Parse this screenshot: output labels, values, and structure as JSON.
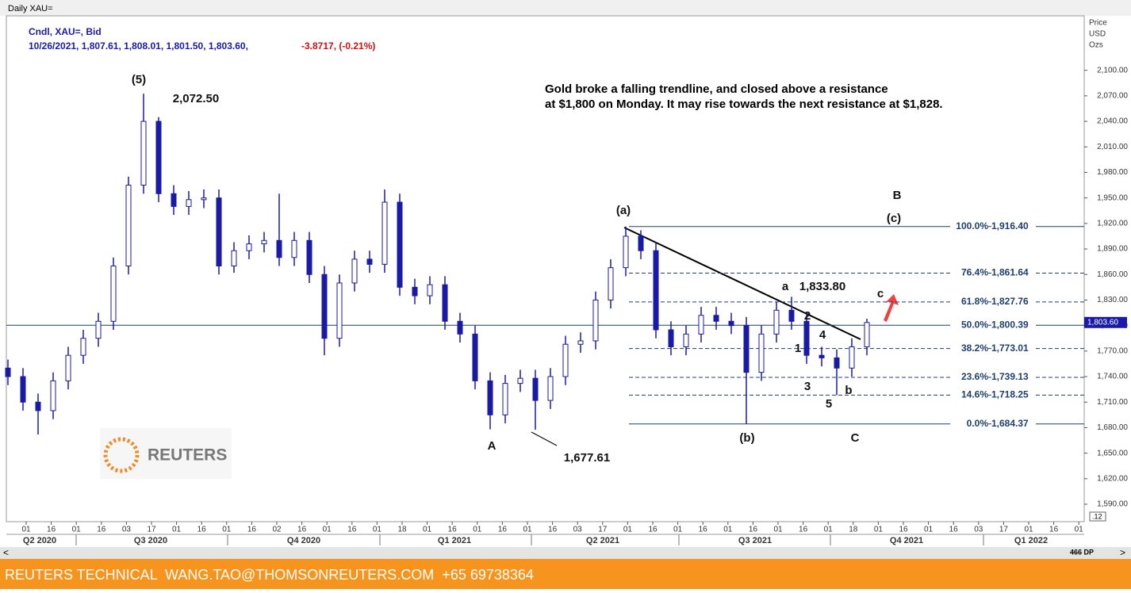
{
  "header": {
    "window_title": "Daily XAU=",
    "instrument": "Cndl, XAU=, Bid",
    "ohlc_line": "10/26/2021, 1,807.61, 1,808.01, 1,801.50, 1,803.60,",
    "change": "-3.8717, (-0.21%)"
  },
  "axis_header": [
    "Price",
    "USD",
    "Ozs"
  ],
  "chart_data": {
    "type": "candlestick",
    "color": "#1a1aa8",
    "categories": [
      null,
      null,
      null,
      null,
      null,
      null,
      null,
      null,
      null,
      null,
      null,
      null,
      null,
      null,
      null,
      null,
      null,
      null,
      null,
      null,
      null,
      null,
      null,
      null,
      null,
      null,
      null,
      null,
      null,
      null,
      null,
      null,
      null,
      null,
      null,
      null,
      null,
      null,
      null,
      null,
      null,
      null,
      null,
      null,
      null,
      null,
      null,
      null,
      null,
      null,
      null,
      null,
      null,
      null,
      null,
      null,
      null,
      null
    ],
    "open": [
      1750,
      1740,
      1710,
      1700,
      1735,
      1765,
      1785,
      1805,
      1870,
      1965,
      2040,
      1955,
      1940,
      1948,
      1950,
      1870,
      1888,
      1896,
      1900,
      1880,
      1900,
      1860,
      1785,
      1850,
      1878,
      1872,
      1945,
      1845,
      1835,
      1848,
      1805,
      1790,
      1735,
      1695,
      1732,
      1738,
      1712,
      1740,
      1778,
      1782,
      1830,
      1868,
      1905,
      1888,
      1795,
      1775,
      1790,
      1812,
      1805,
      1800,
      1745,
      1790,
      1818,
      1805,
      1765,
      1762,
      1750,
      1775
    ],
    "high": [
      1760,
      1750,
      1720,
      1745,
      1775,
      1795,
      1815,
      1880,
      1975,
      2072.5,
      2045,
      1965,
      1958,
      1960,
      1960,
      1898,
      1906,
      1910,
      1955,
      1910,
      1910,
      1870,
      1860,
      1888,
      1888,
      1960,
      1955,
      1855,
      1858,
      1858,
      1815,
      1800,
      1745,
      1742,
      1748,
      1748,
      1750,
      1788,
      1792,
      1840,
      1878,
      1916.4,
      1912,
      1898,
      1805,
      1800,
      1822,
      1822,
      1815,
      1810,
      1800,
      1828,
      1833.8,
      1815,
      1775,
      1772,
      1785,
      1808.01
    ],
    "low": [
      1730,
      1700,
      1672,
      1690,
      1725,
      1755,
      1775,
      1795,
      1860,
      1955,
      1945,
      1930,
      1930,
      1938,
      1860,
      1862,
      1878,
      1886,
      1870,
      1870,
      1850,
      1765,
      1775,
      1840,
      1862,
      1862,
      1835,
      1825,
      1825,
      1795,
      1780,
      1725,
      1678,
      1685,
      1722,
      1677.61,
      1702,
      1730,
      1768,
      1772,
      1820,
      1858,
      1878,
      1785,
      1765,
      1765,
      1780,
      1795,
      1790,
      1684.37,
      1735,
      1780,
      1795,
      1755,
      1752,
      1718.25,
      1740,
      1765
    ],
    "close": [
      1740,
      1710,
      1700,
      1735,
      1765,
      1785,
      1805,
      1870,
      1965,
      2040,
      1955,
      1940,
      1948,
      1950,
      1870,
      1888,
      1896,
      1900,
      1880,
      1900,
      1860,
      1785,
      1850,
      1878,
      1872,
      1945,
      1845,
      1835,
      1848,
      1805,
      1790,
      1735,
      1695,
      1732,
      1738,
      1712,
      1740,
      1778,
      1782,
      1830,
      1868,
      1905,
      1888,
      1795,
      1775,
      1790,
      1812,
      1805,
      1800,
      1745,
      1790,
      1818,
      1805,
      1765,
      1762,
      1750,
      1775,
      1803.6
    ],
    "ylim": [
      1569.5,
      2164
    ],
    "yticks": [
      {
        "value": 1590,
        "label": "1,590.00"
      },
      {
        "value": 1620,
        "label": "1,620.00"
      },
      {
        "value": 1650,
        "label": "1,650.00"
      },
      {
        "value": 1680,
        "label": "1,680.00"
      },
      {
        "value": 1710,
        "label": "1,710.00"
      },
      {
        "value": 1740,
        "label": "1,740.00"
      },
      {
        "value": 1770,
        "label": "1,770.00"
      },
      {
        "value": 1800,
        "label": "1,800.00"
      },
      {
        "value": 1830,
        "label": "1,830.00"
      },
      {
        "value": 1860,
        "label": "1,860.00"
      },
      {
        "value": 1890,
        "label": "1,890.00"
      },
      {
        "value": 1920,
        "label": "1,920.00"
      },
      {
        "value": 1950,
        "label": "1,950.00"
      },
      {
        "value": 1980,
        "label": "1,980.00"
      },
      {
        "value": 2010,
        "label": "2,010.00"
      },
      {
        "value": 2040,
        "label": "2,040.00"
      },
      {
        "value": 2070,
        "label": "2,070.00"
      },
      {
        "value": 2100,
        "label": "2,100.00"
      }
    ],
    "x_tick_labels": [
      "01",
      "16",
      "01",
      "16",
      "03",
      "17",
      "01",
      "16",
      "01",
      "16",
      "02",
      "16",
      "01",
      "16",
      "01",
      "18",
      "01",
      "16",
      "01",
      "16",
      "01",
      "16",
      "03",
      "17",
      "01",
      "16",
      "01",
      "16",
      "01",
      "16",
      "01",
      "16",
      "01",
      "18",
      "01",
      "16",
      "01",
      "16",
      "03",
      "17",
      "01",
      "16",
      "01"
    ],
    "quarter_labels": [
      "Q2 2020",
      "Q3 2020",
      "Q4 2020",
      "Q1 2021",
      "Q2 2021",
      "Q3 2021",
      "Q4 2021",
      "Q1 2022"
    ],
    "fib_levels": [
      {
        "label": "100.0%",
        "value": 1916.4,
        "value_label": "1,916.40"
      },
      {
        "label": "76.4%",
        "value": 1861.64,
        "value_label": "1,861.64"
      },
      {
        "label": "61.8%",
        "value": 1827.76,
        "value_label": "1,827.76"
      },
      {
        "label": "50.0%",
        "value": 1800.39,
        "value_label": "1,800.39"
      },
      {
        "label": "38.2%",
        "value": 1773.01,
        "value_label": "1,773.01"
      },
      {
        "label": "23.6%",
        "value": 1739.13,
        "value_label": "1,739.13"
      },
      {
        "label": "14.6%",
        "value": 1718.25,
        "value_label": "1,718.25"
      },
      {
        "label": "0.0%",
        "value": 1684.37,
        "value_label": "1,684.37"
      }
    ],
    "last_price_label": "1,803.60",
    "annotations": [
      "(5)",
      "2,072.50",
      "(a)",
      "B",
      "(c)",
      "a",
      "1,833.80",
      "c",
      "2",
      "4",
      "1",
      "3",
      "b",
      "5",
      "(b)",
      "C",
      "A",
      "1,677.61"
    ],
    "comment": [
      "Gold broke a falling trendline, and closed above a resistance",
      "at $1,800 on Monday. It may rise towards the next resistance at $1,828."
    ]
  },
  "logo": "REUTERS",
  "scroll_info": "466 DP",
  "zoom": ".12",
  "footer": "REUTERS TECHNICAL  WANG.TAO@THOMSONREUTERS.COM  +65 69738364"
}
